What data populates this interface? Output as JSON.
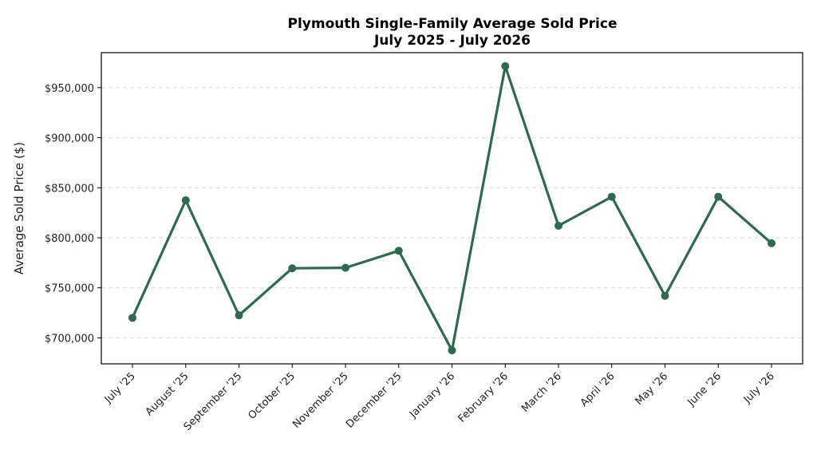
{
  "chart_data": {
    "type": "line",
    "title": "Plymouth Single-Family Average Sold Price",
    "subtitle": "July 2025 - July 2026",
    "xlabel": "",
    "ylabel": "Average Sold Price ($)",
    "categories": [
      "July '25",
      "August '25",
      "September '25",
      "October '25",
      "November '25",
      "December '25",
      "January '26",
      "February '26",
      "March '26",
      "April '26",
      "May '26",
      "June '26",
      "July '26"
    ],
    "values": [
      720000,
      837500,
      722500,
      769500,
      770000,
      787000,
      687500,
      971500,
      812000,
      841000,
      742000,
      841000,
      794500
    ],
    "yticks": [
      700000,
      750000,
      800000,
      850000,
      900000,
      950000
    ],
    "ytick_labels": [
      "$700,000",
      "$750,000",
      "$800,000",
      "$850,000",
      "$900,000",
      "$950,000"
    ],
    "ylim": [
      674000,
      985000
    ],
    "grid": "horizontal dashed",
    "line_color": "#2d6a4f"
  }
}
